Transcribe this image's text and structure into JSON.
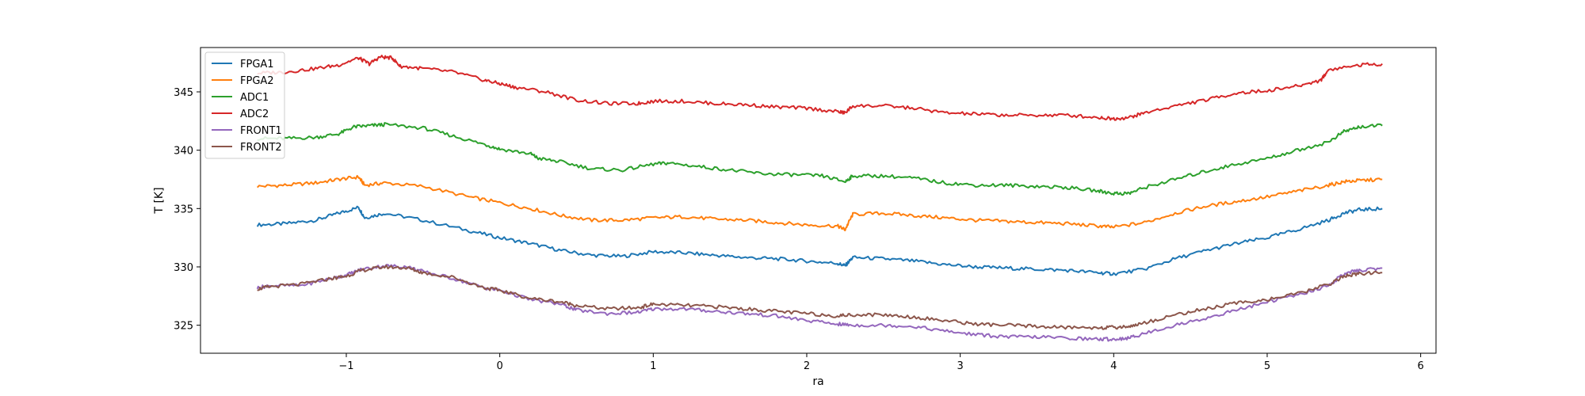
{
  "chart_data": {
    "type": "line",
    "title": "",
    "xlabel": "ra",
    "ylabel": "T [K]",
    "xlim": [
      -1.95,
      6.1
    ],
    "ylim": [
      322.6,
      348.8
    ],
    "xticks": [
      -1,
      0,
      1,
      2,
      3,
      4,
      5,
      6
    ],
    "xtick_labels": [
      "−1",
      "0",
      "1",
      "2",
      "3",
      "4",
      "5",
      "6"
    ],
    "yticks": [
      325,
      330,
      335,
      340,
      345
    ],
    "grid": false,
    "legend_position": "top-left",
    "series": [
      {
        "name": "FPGA1",
        "color": "#1f77b4",
        "points": [
          [
            -1.58,
            333.6
          ],
          [
            -1.4,
            333.7
          ],
          [
            -1.2,
            334.0
          ],
          [
            -1.05,
            334.6
          ],
          [
            -0.92,
            335.1
          ],
          [
            -0.88,
            334.2
          ],
          [
            -0.75,
            334.6
          ],
          [
            -0.5,
            334.0
          ],
          [
            -0.2,
            333.1
          ],
          [
            0.0,
            332.5
          ],
          [
            0.2,
            332.0
          ],
          [
            0.4,
            331.4
          ],
          [
            0.6,
            331.0
          ],
          [
            0.8,
            330.9
          ],
          [
            1.0,
            331.3
          ],
          [
            1.2,
            331.2
          ],
          [
            1.4,
            331.0
          ],
          [
            1.6,
            330.8
          ],
          [
            1.8,
            330.7
          ],
          [
            2.0,
            330.5
          ],
          [
            2.2,
            330.3
          ],
          [
            2.25,
            330.1
          ],
          [
            2.3,
            330.8
          ],
          [
            2.5,
            330.7
          ],
          [
            2.7,
            330.5
          ],
          [
            2.9,
            330.2
          ],
          [
            3.1,
            330.0
          ],
          [
            3.3,
            329.9
          ],
          [
            3.5,
            329.8
          ],
          [
            3.7,
            329.7
          ],
          [
            3.9,
            329.5
          ],
          [
            4.0,
            329.4
          ],
          [
            4.2,
            329.8
          ],
          [
            4.4,
            330.7
          ],
          [
            4.6,
            331.4
          ],
          [
            4.8,
            332.0
          ],
          [
            5.0,
            332.5
          ],
          [
            5.2,
            333.2
          ],
          [
            5.4,
            334.0
          ],
          [
            5.5,
            334.6
          ],
          [
            5.6,
            334.9
          ],
          [
            5.75,
            335.0
          ]
        ]
      },
      {
        "name": "FPGA2",
        "color": "#ff7f0e",
        "points": [
          [
            -1.58,
            336.9
          ],
          [
            -1.4,
            337.0
          ],
          [
            -1.2,
            337.2
          ],
          [
            -1.05,
            337.5
          ],
          [
            -0.92,
            337.7
          ],
          [
            -0.88,
            337.0
          ],
          [
            -0.75,
            337.2
          ],
          [
            -0.5,
            336.9
          ],
          [
            -0.2,
            336.0
          ],
          [
            0.0,
            335.5
          ],
          [
            0.2,
            335.0
          ],
          [
            0.4,
            334.4
          ],
          [
            0.6,
            334.0
          ],
          [
            0.8,
            334.0
          ],
          [
            1.0,
            334.2
          ],
          [
            1.2,
            334.3
          ],
          [
            1.4,
            334.1
          ],
          [
            1.6,
            334.0
          ],
          [
            1.8,
            333.8
          ],
          [
            2.0,
            333.6
          ],
          [
            2.2,
            333.5
          ],
          [
            2.25,
            333.2
          ],
          [
            2.3,
            334.5
          ],
          [
            2.5,
            334.6
          ],
          [
            2.7,
            334.4
          ],
          [
            2.9,
            334.2
          ],
          [
            3.1,
            334.0
          ],
          [
            3.3,
            333.9
          ],
          [
            3.5,
            333.8
          ],
          [
            3.7,
            333.7
          ],
          [
            3.9,
            333.5
          ],
          [
            4.0,
            333.4
          ],
          [
            4.2,
            333.8
          ],
          [
            4.4,
            334.6
          ],
          [
            4.6,
            335.2
          ],
          [
            4.8,
            335.6
          ],
          [
            5.0,
            336.0
          ],
          [
            5.2,
            336.5
          ],
          [
            5.4,
            337.0
          ],
          [
            5.5,
            337.3
          ],
          [
            5.6,
            337.4
          ],
          [
            5.75,
            337.5
          ]
        ]
      },
      {
        "name": "ADC1",
        "color": "#2ca02c",
        "points": [
          [
            -1.58,
            341.0
          ],
          [
            -1.4,
            341.0
          ],
          [
            -1.2,
            341.1
          ],
          [
            -1.05,
            341.4
          ],
          [
            -0.95,
            342.0
          ],
          [
            -0.85,
            342.1
          ],
          [
            -0.75,
            342.2
          ],
          [
            -0.5,
            341.9
          ],
          [
            -0.3,
            341.2
          ],
          [
            -0.1,
            340.5
          ],
          [
            0.0,
            340.1
          ],
          [
            0.2,
            339.7
          ],
          [
            0.25,
            339.3
          ],
          [
            0.4,
            339.0
          ],
          [
            0.6,
            338.4
          ],
          [
            0.8,
            338.3
          ],
          [
            1.0,
            338.8
          ],
          [
            1.1,
            338.9
          ],
          [
            1.3,
            338.6
          ],
          [
            1.5,
            338.3
          ],
          [
            1.7,
            338.0
          ],
          [
            1.9,
            337.9
          ],
          [
            2.1,
            337.8
          ],
          [
            2.25,
            337.3
          ],
          [
            2.3,
            337.8
          ],
          [
            2.5,
            337.8
          ],
          [
            2.7,
            337.6
          ],
          [
            2.9,
            337.2
          ],
          [
            3.1,
            337.0
          ],
          [
            3.3,
            337.0
          ],
          [
            3.5,
            336.9
          ],
          [
            3.7,
            336.8
          ],
          [
            3.9,
            336.5
          ],
          [
            4.0,
            336.3
          ],
          [
            4.1,
            336.3
          ],
          [
            4.2,
            336.8
          ],
          [
            4.4,
            337.5
          ],
          [
            4.6,
            338.2
          ],
          [
            4.8,
            338.8
          ],
          [
            5.0,
            339.3
          ],
          [
            5.2,
            340.0
          ],
          [
            5.4,
            340.7
          ],
          [
            5.5,
            341.6
          ],
          [
            5.6,
            342.0
          ],
          [
            5.75,
            342.1
          ]
        ]
      },
      {
        "name": "ADC2",
        "color": "#d62728",
        "points": [
          [
            -1.58,
            346.6
          ],
          [
            -1.4,
            346.7
          ],
          [
            -1.2,
            347.0
          ],
          [
            -1.05,
            347.3
          ],
          [
            -0.92,
            347.9
          ],
          [
            -0.85,
            347.4
          ],
          [
            -0.78,
            348.0
          ],
          [
            -0.7,
            347.9
          ],
          [
            -0.65,
            347.2
          ],
          [
            -0.5,
            347.0
          ],
          [
            -0.3,
            346.7
          ],
          [
            -0.1,
            346.0
          ],
          [
            0.0,
            345.7
          ],
          [
            0.1,
            345.4
          ],
          [
            0.3,
            345.0
          ],
          [
            0.5,
            344.3
          ],
          [
            0.7,
            344.0
          ],
          [
            0.9,
            344.0
          ],
          [
            1.0,
            344.2
          ],
          [
            1.2,
            344.2
          ],
          [
            1.4,
            344.0
          ],
          [
            1.6,
            343.9
          ],
          [
            1.8,
            343.7
          ],
          [
            2.0,
            343.6
          ],
          [
            2.2,
            343.3
          ],
          [
            2.25,
            343.2
          ],
          [
            2.3,
            343.8
          ],
          [
            2.5,
            343.8
          ],
          [
            2.7,
            343.6
          ],
          [
            2.9,
            343.2
          ],
          [
            3.1,
            343.1
          ],
          [
            3.3,
            343.0
          ],
          [
            3.5,
            343.0
          ],
          [
            3.7,
            343.0
          ],
          [
            3.9,
            342.8
          ],
          [
            4.0,
            342.7
          ],
          [
            4.1,
            342.8
          ],
          [
            4.2,
            343.2
          ],
          [
            4.4,
            343.8
          ],
          [
            4.6,
            344.3
          ],
          [
            4.8,
            344.9
          ],
          [
            5.0,
            345.1
          ],
          [
            5.2,
            345.5
          ],
          [
            5.35,
            346.0
          ],
          [
            5.4,
            346.9
          ],
          [
            5.6,
            347.3
          ],
          [
            5.75,
            347.4
          ]
        ]
      },
      {
        "name": "FRONT1",
        "color": "#9467bd",
        "points": [
          [
            -1.58,
            328.2
          ],
          [
            -1.5,
            328.4
          ],
          [
            -1.3,
            328.4
          ],
          [
            -1.1,
            329.0
          ],
          [
            -1.0,
            329.3
          ],
          [
            -0.9,
            329.8
          ],
          [
            -0.75,
            330.1
          ],
          [
            -0.6,
            330.0
          ],
          [
            -0.5,
            329.6
          ],
          [
            -0.3,
            329.0
          ],
          [
            -0.1,
            328.2
          ],
          [
            0.0,
            328.0
          ],
          [
            0.2,
            327.2
          ],
          [
            0.4,
            326.8
          ],
          [
            0.5,
            326.3
          ],
          [
            0.7,
            326.0
          ],
          [
            0.9,
            326.1
          ],
          [
            1.0,
            326.4
          ],
          [
            1.2,
            326.4
          ],
          [
            1.4,
            326.2
          ],
          [
            1.6,
            326.0
          ],
          [
            1.8,
            325.8
          ],
          [
            2.0,
            325.4
          ],
          [
            2.2,
            325.1
          ],
          [
            2.3,
            325.0
          ],
          [
            2.5,
            325.0
          ],
          [
            2.7,
            324.9
          ],
          [
            2.9,
            324.5
          ],
          [
            3.1,
            324.2
          ],
          [
            3.3,
            324.0
          ],
          [
            3.5,
            324.0
          ],
          [
            3.7,
            323.9
          ],
          [
            3.9,
            323.8
          ],
          [
            4.0,
            323.8
          ],
          [
            4.1,
            323.9
          ],
          [
            4.2,
            324.3
          ],
          [
            4.4,
            325.0
          ],
          [
            4.6,
            325.6
          ],
          [
            4.8,
            326.3
          ],
          [
            5.0,
            327.0
          ],
          [
            5.2,
            327.6
          ],
          [
            5.4,
            328.4
          ],
          [
            5.5,
            329.4
          ],
          [
            5.6,
            329.7
          ],
          [
            5.75,
            329.9
          ]
        ]
      },
      {
        "name": "FRONT2",
        "color": "#8c564b",
        "points": [
          [
            -1.58,
            328.1
          ],
          [
            -1.5,
            328.3
          ],
          [
            -1.3,
            328.5
          ],
          [
            -1.1,
            329.0
          ],
          [
            -1.0,
            329.2
          ],
          [
            -0.9,
            329.7
          ],
          [
            -0.75,
            330.0
          ],
          [
            -0.6,
            329.9
          ],
          [
            -0.5,
            329.5
          ],
          [
            -0.3,
            329.1
          ],
          [
            -0.1,
            328.2
          ],
          [
            0.0,
            328.0
          ],
          [
            0.2,
            327.3
          ],
          [
            0.4,
            327.0
          ],
          [
            0.5,
            326.7
          ],
          [
            0.7,
            326.4
          ],
          [
            0.9,
            326.5
          ],
          [
            1.0,
            326.8
          ],
          [
            1.2,
            326.7
          ],
          [
            1.4,
            326.6
          ],
          [
            1.6,
            326.4
          ],
          [
            1.8,
            326.2
          ],
          [
            2.0,
            326.0
          ],
          [
            2.2,
            325.8
          ],
          [
            2.3,
            325.9
          ],
          [
            2.5,
            325.9
          ],
          [
            2.7,
            325.7
          ],
          [
            2.9,
            325.4
          ],
          [
            3.1,
            325.1
          ],
          [
            3.3,
            325.0
          ],
          [
            3.5,
            324.9
          ],
          [
            3.7,
            324.8
          ],
          [
            3.9,
            324.8
          ],
          [
            4.0,
            324.8
          ],
          [
            4.1,
            324.9
          ],
          [
            4.2,
            325.2
          ],
          [
            4.4,
            325.9
          ],
          [
            4.6,
            326.4
          ],
          [
            4.8,
            326.9
          ],
          [
            5.0,
            327.2
          ],
          [
            5.2,
            327.7
          ],
          [
            5.4,
            328.5
          ],
          [
            5.5,
            329.2
          ],
          [
            5.6,
            329.4
          ],
          [
            5.75,
            329.5
          ]
        ]
      }
    ]
  }
}
